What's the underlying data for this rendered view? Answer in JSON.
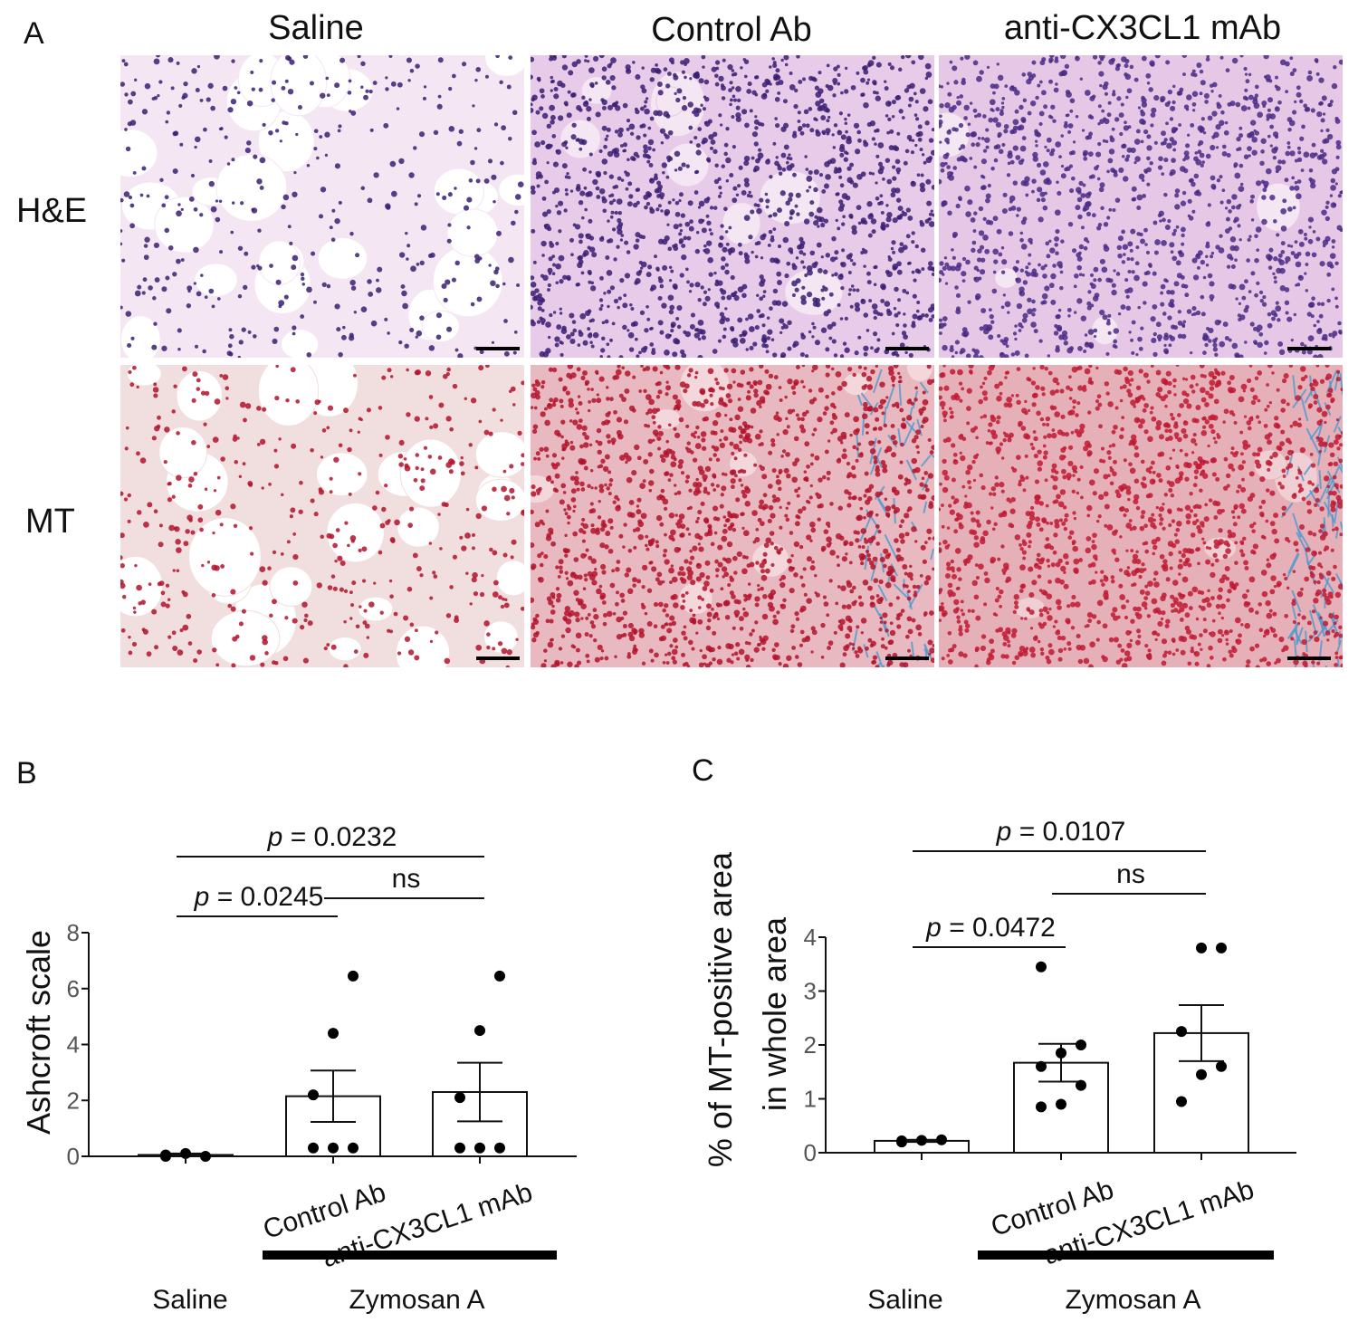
{
  "panel_letters": [
    "A",
    "B",
    "C"
  ],
  "micrographs": {
    "columns": [
      "Saline",
      "Control Ab",
      "anti-CX3CL1 mAb"
    ],
    "rows": [
      "H&E",
      "MT"
    ],
    "colors": {
      "he_background": "#f4e6f2",
      "he_nuclei": "#3b1f73",
      "mt_background": "#f6eeee",
      "mt_cells": "#b3132b",
      "mt_collagen": "#4d9ad0"
    }
  },
  "chart_data": [
    {
      "panel": "B",
      "type": "bar",
      "categories": [
        "Saline",
        "Control Ab",
        "anti-CX3CL1 mAb"
      ],
      "values": [
        0.05,
        2.15,
        2.3
      ],
      "error": [
        0.05,
        0.92,
        1.05
      ],
      "points": [
        [
          0,
          0.1,
          0,
          0.05
        ],
        [
          0.3,
          0.3,
          0.3,
          2.2,
          4.4,
          6.45
        ],
        [
          0.3,
          0.3,
          0.3,
          2.1,
          4.5,
          6.45
        ]
      ],
      "ylabel": "Ashcroft scale",
      "yticks": [
        "0",
        "2",
        "4",
        "6",
        "8"
      ],
      "ylim": [
        0,
        8
      ],
      "group_labels": [
        "Saline",
        "Zymosan A"
      ],
      "comparisons": [
        {
          "from": 0,
          "to": 1,
          "label": "p = 0.0245"
        },
        {
          "from": 1,
          "to": 2,
          "label": "ns"
        },
        {
          "from": 0,
          "to": 2,
          "label": "p = 0.0232"
        }
      ]
    },
    {
      "panel": "C",
      "type": "bar",
      "categories": [
        "Saline",
        "Control Ab",
        "anti-CX3CL1 mAb"
      ],
      "values": [
        0.22,
        1.67,
        2.22
      ],
      "error": [
        0.02,
        0.35,
        0.52
      ],
      "points": [
        [
          0.2,
          0.23,
          0.24,
          0.22
        ],
        [
          0.85,
          0.9,
          1.25,
          1.6,
          1.85,
          2.0,
          3.45
        ],
        [
          0.95,
          1.45,
          1.6,
          2.25,
          3.8,
          3.8
        ]
      ],
      "ylabel": "% of MT-positive area",
      "ylabel2": "in whole area",
      "yticks": [
        "0",
        "1",
        "2",
        "3",
        "4"
      ],
      "ylim": [
        0,
        4
      ],
      "group_labels": [
        "Saline",
        "Zymosan A"
      ],
      "comparisons": [
        {
          "from": 0,
          "to": 1,
          "label": "p = 0.0472"
        },
        {
          "from": 1,
          "to": 2,
          "label": "ns"
        },
        {
          "from": 0,
          "to": 2,
          "label": "p = 0.0107"
        }
      ]
    }
  ]
}
